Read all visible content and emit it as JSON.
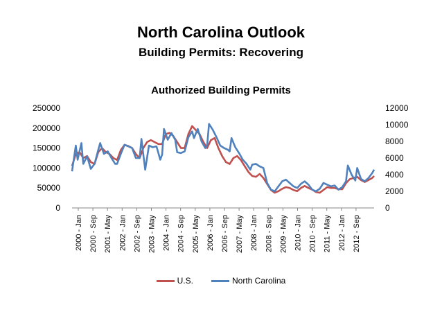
{
  "header": {
    "title": "North Carolina Outlook",
    "subtitle": "Building Permits:  Recovering"
  },
  "chart_data": {
    "type": "line",
    "title": "Authorized Building Permits",
    "colors": {
      "us": "#c0504d",
      "nc": "#4f81bd"
    },
    "left_axis": {
      "min": 0,
      "max": 250000,
      "ticks": [
        "250000",
        "200000",
        "150000",
        "100000",
        "50000",
        "0"
      ]
    },
    "right_axis": {
      "min": 0,
      "max": 12000,
      "ticks": [
        "12000",
        "10000",
        "8000",
        "6000",
        "4000",
        "2000",
        "0"
      ]
    },
    "x_tick_labels": [
      "2000 - Jan",
      "2000 - Sep",
      "2001 - May",
      "2002 - Jan",
      "2002 - Sep",
      "2003 - May",
      "2004 - Jan",
      "2004 - Sep",
      "2005 - May",
      "2006 - Jan",
      "2006 - Sep",
      "2007 - May",
      "2008 - Jan",
      "2008 - Sep",
      "2009 - May",
      "2010 - Jan",
      "2010 - Sep",
      "2011 - May",
      "2012 - Jan",
      "2012 - Sep"
    ],
    "x_start": "2000-01",
    "x_end": "2013-06",
    "series": [
      {
        "name": "U.S.",
        "axis": "left",
        "key": "us",
        "values": [
          [
            "2000-01",
            105000
          ],
          [
            "2000-03",
            135000
          ],
          [
            "2000-05",
            140000
          ],
          [
            "2000-07",
            125000
          ],
          [
            "2000-09",
            130000
          ],
          [
            "2000-11",
            115000
          ],
          [
            "2001-01",
            110000
          ],
          [
            "2001-03",
            140000
          ],
          [
            "2001-05",
            150000
          ],
          [
            "2001-07",
            140000
          ],
          [
            "2001-09",
            135000
          ],
          [
            "2001-11",
            125000
          ],
          [
            "2002-01",
            120000
          ],
          [
            "2002-03",
            145000
          ],
          [
            "2002-05",
            158000
          ],
          [
            "2002-07",
            155000
          ],
          [
            "2002-09",
            150000
          ],
          [
            "2002-11",
            135000
          ],
          [
            "2003-01",
            125000
          ],
          [
            "2003-03",
            150000
          ],
          [
            "2003-05",
            165000
          ],
          [
            "2003-07",
            170000
          ],
          [
            "2003-09",
            165000
          ],
          [
            "2003-11",
            160000
          ],
          [
            "2004-01",
            160000
          ],
          [
            "2004-03",
            185000
          ],
          [
            "2004-05",
            188000
          ],
          [
            "2004-07",
            180000
          ],
          [
            "2004-09",
            165000
          ],
          [
            "2004-11",
            150000
          ],
          [
            "2005-01",
            150000
          ],
          [
            "2005-03",
            185000
          ],
          [
            "2005-05",
            205000
          ],
          [
            "2005-07",
            195000
          ],
          [
            "2005-09",
            185000
          ],
          [
            "2005-11",
            165000
          ],
          [
            "2006-01",
            150000
          ],
          [
            "2006-03",
            170000
          ],
          [
            "2006-05",
            175000
          ],
          [
            "2006-07",
            150000
          ],
          [
            "2006-09",
            130000
          ],
          [
            "2006-11",
            115000
          ],
          [
            "2007-01",
            110000
          ],
          [
            "2007-03",
            125000
          ],
          [
            "2007-05",
            130000
          ],
          [
            "2007-07",
            120000
          ],
          [
            "2007-09",
            105000
          ],
          [
            "2007-11",
            90000
          ],
          [
            "2008-01",
            80000
          ],
          [
            "2008-03",
            78000
          ],
          [
            "2008-05",
            85000
          ],
          [
            "2008-07",
            75000
          ],
          [
            "2008-09",
            60000
          ],
          [
            "2008-11",
            45000
          ],
          [
            "2009-01",
            38000
          ],
          [
            "2009-03",
            42000
          ],
          [
            "2009-05",
            48000
          ],
          [
            "2009-07",
            52000
          ],
          [
            "2009-09",
            50000
          ],
          [
            "2009-11",
            45000
          ],
          [
            "2010-01",
            42000
          ],
          [
            "2010-03",
            50000
          ],
          [
            "2010-05",
            55000
          ],
          [
            "2010-07",
            50000
          ],
          [
            "2010-09",
            46000
          ],
          [
            "2010-11",
            40000
          ],
          [
            "2011-01",
            38000
          ],
          [
            "2011-03",
            45000
          ],
          [
            "2011-05",
            52000
          ],
          [
            "2011-07",
            50000
          ],
          [
            "2011-09",
            50000
          ],
          [
            "2011-11",
            47000
          ],
          [
            "2012-01",
            47000
          ],
          [
            "2012-03",
            62000
          ],
          [
            "2012-05",
            72000
          ],
          [
            "2012-07",
            75000
          ],
          [
            "2012-09",
            78000
          ],
          [
            "2012-11",
            70000
          ],
          [
            "2013-01",
            65000
          ],
          [
            "2013-03",
            70000
          ],
          [
            "2013-05",
            75000
          ],
          [
            "2013-06",
            80000
          ]
        ]
      },
      {
        "name": "North Carolina",
        "axis": "right",
        "key": "nc",
        "values": [
          [
            "2000-01",
            4400
          ],
          [
            "2000-03",
            7500
          ],
          [
            "2000-04",
            5800
          ],
          [
            "2000-06",
            7800
          ],
          [
            "2000-07",
            5300
          ],
          [
            "2000-09",
            6200
          ],
          [
            "2000-11",
            4700
          ],
          [
            "2001-01",
            5300
          ],
          [
            "2001-03",
            7000
          ],
          [
            "2001-04",
            7800
          ],
          [
            "2001-06",
            6500
          ],
          [
            "2001-08",
            6800
          ],
          [
            "2001-10",
            6000
          ],
          [
            "2001-12",
            5300
          ],
          [
            "2002-01",
            5300
          ],
          [
            "2002-03",
            6500
          ],
          [
            "2002-05",
            7600
          ],
          [
            "2002-07",
            7400
          ],
          [
            "2002-09",
            7200
          ],
          [
            "2002-11",
            6000
          ],
          [
            "2003-01",
            6000
          ],
          [
            "2003-02",
            8300
          ],
          [
            "2003-03",
            6400
          ],
          [
            "2003-04",
            4600
          ],
          [
            "2003-06",
            7500
          ],
          [
            "2003-08",
            7300
          ],
          [
            "2003-10",
            7400
          ],
          [
            "2003-12",
            5800
          ],
          [
            "2004-01",
            6400
          ],
          [
            "2004-02",
            9500
          ],
          [
            "2004-04",
            8200
          ],
          [
            "2004-06",
            9000
          ],
          [
            "2004-08",
            8200
          ],
          [
            "2004-09",
            6700
          ],
          [
            "2004-11",
            6600
          ],
          [
            "2005-01",
            6800
          ],
          [
            "2005-03",
            8500
          ],
          [
            "2005-05",
            9200
          ],
          [
            "2005-06",
            8400
          ],
          [
            "2005-08",
            9500
          ],
          [
            "2005-10",
            8000
          ],
          [
            "2005-12",
            7200
          ],
          [
            "2006-01",
            7500
          ],
          [
            "2006-02",
            10100
          ],
          [
            "2006-04",
            9400
          ],
          [
            "2006-06",
            8500
          ],
          [
            "2006-08",
            7500
          ],
          [
            "2006-10",
            7200
          ],
          [
            "2006-12",
            7000
          ],
          [
            "2007-01",
            6800
          ],
          [
            "2007-02",
            8400
          ],
          [
            "2007-04",
            7300
          ],
          [
            "2007-06",
            6600
          ],
          [
            "2007-08",
            5800
          ],
          [
            "2007-10",
            5300
          ],
          [
            "2007-12",
            4600
          ],
          [
            "2008-01",
            5200
          ],
          [
            "2008-03",
            5300
          ],
          [
            "2008-05",
            5000
          ],
          [
            "2008-07",
            4800
          ],
          [
            "2008-09",
            3000
          ],
          [
            "2008-11",
            2200
          ],
          [
            "2009-01",
            2000
          ],
          [
            "2009-03",
            2600
          ],
          [
            "2009-05",
            3200
          ],
          [
            "2009-07",
            3400
          ],
          [
            "2009-09",
            3000
          ],
          [
            "2009-11",
            2600
          ],
          [
            "2010-01",
            2400
          ],
          [
            "2010-03",
            2900
          ],
          [
            "2010-05",
            3200
          ],
          [
            "2010-07",
            2800
          ],
          [
            "2010-09",
            2200
          ],
          [
            "2010-11",
            2000
          ],
          [
            "2011-01",
            2300
          ],
          [
            "2011-03",
            3000
          ],
          [
            "2011-05",
            2800
          ],
          [
            "2011-07",
            2600
          ],
          [
            "2011-09",
            2700
          ],
          [
            "2011-11",
            2200
          ],
          [
            "2012-01",
            2500
          ],
          [
            "2012-03",
            3200
          ],
          [
            "2012-04",
            5100
          ],
          [
            "2012-06",
            4000
          ],
          [
            "2012-08",
            3300
          ],
          [
            "2012-09",
            4800
          ],
          [
            "2012-11",
            3500
          ],
          [
            "2013-01",
            3200
          ],
          [
            "2013-03",
            3600
          ],
          [
            "2013-05",
            4200
          ],
          [
            "2013-06",
            4600
          ]
        ]
      }
    ],
    "legend": "bottom"
  }
}
